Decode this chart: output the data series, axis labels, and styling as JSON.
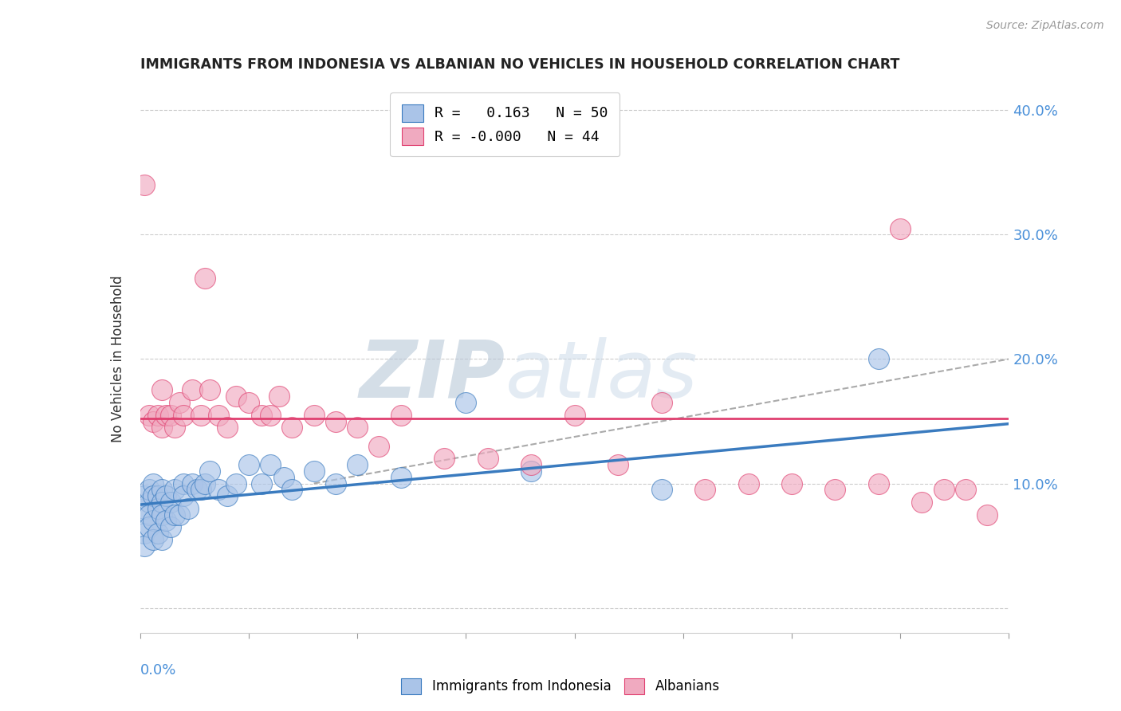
{
  "title": "IMMIGRANTS FROM INDONESIA VS ALBANIAN NO VEHICLES IN HOUSEHOLD CORRELATION CHART",
  "source": "Source: ZipAtlas.com",
  "ylabel": "No Vehicles in Household",
  "xlim": [
    0.0,
    0.2
  ],
  "ylim": [
    -0.02,
    0.42
  ],
  "yticks_right": [
    0.0,
    0.1,
    0.2,
    0.3,
    0.4
  ],
  "ytick_labels_right": [
    "",
    "10.0%",
    "20.0%",
    "30.0%",
    "40.0%"
  ],
  "xticks": [
    0.0,
    0.025,
    0.05,
    0.075,
    0.1,
    0.125,
    0.15,
    0.175,
    0.2
  ],
  "legend_r1": "R =   0.163   N = 50",
  "legend_r2": "R = -0.000   N = 44",
  "blue_color": "#aac4e8",
  "pink_color": "#f0aac0",
  "blue_line_color": "#3a7bbf",
  "pink_line_color": "#e04070",
  "watermark_zip": "ZIP",
  "watermark_atlas": "atlas",
  "watermark_color_zip": "#c0cfe0",
  "watermark_color_atlas": "#c0cfe0",
  "blue_scatter_x": [
    0.001,
    0.001,
    0.001,
    0.001,
    0.002,
    0.002,
    0.002,
    0.002,
    0.003,
    0.003,
    0.003,
    0.003,
    0.004,
    0.004,
    0.004,
    0.005,
    0.005,
    0.005,
    0.005,
    0.006,
    0.006,
    0.007,
    0.007,
    0.008,
    0.008,
    0.009,
    0.01,
    0.01,
    0.011,
    0.012,
    0.013,
    0.014,
    0.015,
    0.016,
    0.018,
    0.02,
    0.022,
    0.025,
    0.028,
    0.03,
    0.033,
    0.035,
    0.04,
    0.045,
    0.05,
    0.06,
    0.075,
    0.09,
    0.12,
    0.17
  ],
  "blue_scatter_y": [
    0.08,
    0.09,
    0.06,
    0.05,
    0.085,
    0.095,
    0.075,
    0.065,
    0.1,
    0.09,
    0.07,
    0.055,
    0.09,
    0.08,
    0.06,
    0.095,
    0.085,
    0.075,
    0.055,
    0.09,
    0.07,
    0.085,
    0.065,
    0.095,
    0.075,
    0.075,
    0.1,
    0.09,
    0.08,
    0.1,
    0.095,
    0.095,
    0.1,
    0.11,
    0.095,
    0.09,
    0.1,
    0.115,
    0.1,
    0.115,
    0.105,
    0.095,
    0.11,
    0.1,
    0.115,
    0.105,
    0.165,
    0.11,
    0.095,
    0.2
  ],
  "pink_scatter_x": [
    0.001,
    0.002,
    0.003,
    0.004,
    0.005,
    0.005,
    0.006,
    0.007,
    0.008,
    0.009,
    0.01,
    0.012,
    0.014,
    0.015,
    0.016,
    0.018,
    0.02,
    0.022,
    0.025,
    0.028,
    0.03,
    0.032,
    0.035,
    0.04,
    0.045,
    0.05,
    0.055,
    0.06,
    0.07,
    0.08,
    0.09,
    0.1,
    0.11,
    0.12,
    0.13,
    0.14,
    0.15,
    0.16,
    0.17,
    0.175,
    0.18,
    0.185,
    0.19,
    0.195
  ],
  "pink_scatter_y": [
    0.34,
    0.155,
    0.15,
    0.155,
    0.175,
    0.145,
    0.155,
    0.155,
    0.145,
    0.165,
    0.155,
    0.175,
    0.155,
    0.265,
    0.175,
    0.155,
    0.145,
    0.17,
    0.165,
    0.155,
    0.155,
    0.17,
    0.145,
    0.155,
    0.15,
    0.145,
    0.13,
    0.155,
    0.12,
    0.12,
    0.115,
    0.155,
    0.115,
    0.165,
    0.095,
    0.1,
    0.1,
    0.095,
    0.1,
    0.305,
    0.085,
    0.095,
    0.095,
    0.075
  ],
  "blue_trendline_x": [
    0.0,
    0.2
  ],
  "blue_trendline_y": [
    0.083,
    0.148
  ],
  "pink_trendline_x": [
    0.0,
    0.2
  ],
  "pink_trendline_y": [
    0.152,
    0.152
  ],
  "blue_dashline_x": [
    0.04,
    0.2
  ],
  "blue_dashline_y": [
    0.1,
    0.2
  ]
}
